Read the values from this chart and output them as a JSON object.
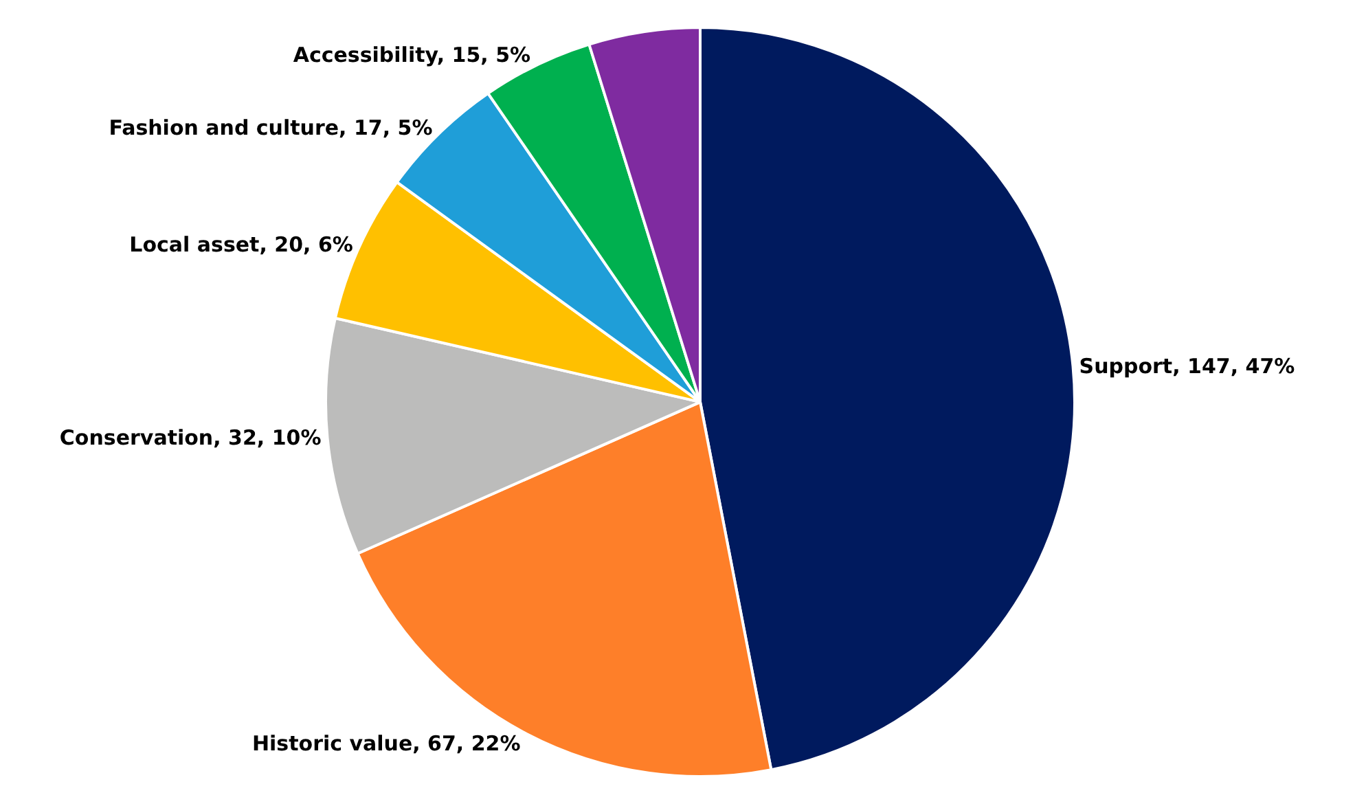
{
  "chart_data": {
    "type": "pie",
    "categories": [
      "Support",
      "Historic value",
      "Conservation",
      "Local asset",
      "Fashion and culture",
      "Accessibility",
      null
    ],
    "values": [
      147,
      67,
      32,
      20,
      17,
      15,
      15
    ],
    "value_labels": [
      "147, 47%",
      "67, 22%",
      "32, 10%",
      "20, 6%",
      "17, 5%",
      "15, 5%",
      null
    ],
    "colors": [
      "#001a5e",
      "#fe7f29",
      "#bcbcbb",
      "#ffc000",
      "#1f9ed8",
      "#00b04f",
      "#7f2ba0"
    ],
    "legend": false
  }
}
